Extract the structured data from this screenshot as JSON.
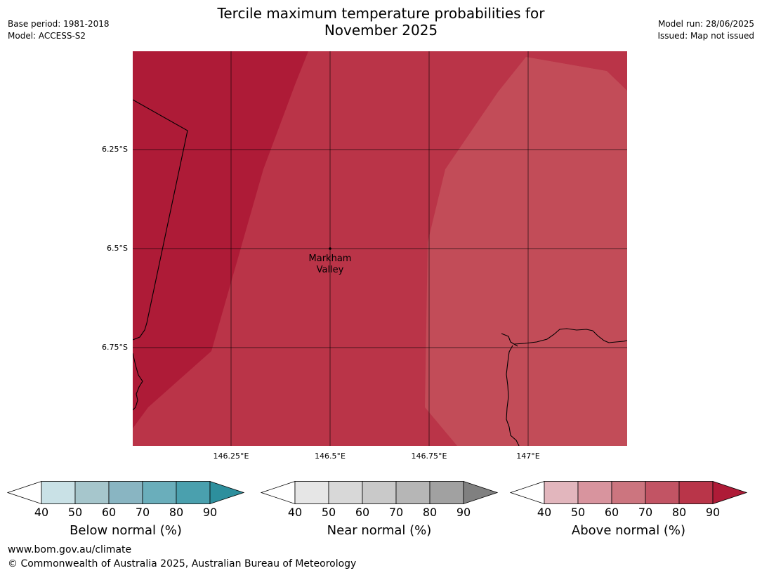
{
  "header": {
    "title_line1": "Tercile maximum temperature probabilities for",
    "title_line2": "November 2025",
    "base_period": "Base period: 1981-2018",
    "model": "Model: ACCESS-S2",
    "model_run": "Model run: 28/06/2025",
    "issued": "Issued: Map not issued"
  },
  "map": {
    "lat_ticks": [
      "6.25°S",
      "6.5°S",
      "6.75°S"
    ],
    "lon_ticks": [
      "146.25°E",
      "146.5°E",
      "146.75°E",
      "147°E"
    ],
    "place": {
      "name_line1": "Markham",
      "name_line2": "Valley",
      "lat": -6.5,
      "lon": 146.5
    },
    "colors": {
      "above_70_80": "#c24c58",
      "above_80_90": "#ba3448",
      "above_90_plus": "#ae1b37"
    }
  },
  "colorbars": [
    {
      "label": "Below normal (%)",
      "ticks": [
        "40",
        "50",
        "60",
        "70",
        "80",
        "90"
      ],
      "colors": [
        "#ffffff",
        "#c9e1e6",
        "#a6c6cc",
        "#89b5c2",
        "#6aaebb",
        "#4aa0ae",
        "#2d8f9d"
      ]
    },
    {
      "label": "Near normal (%)",
      "ticks": [
        "40",
        "50",
        "60",
        "70",
        "80",
        "90"
      ],
      "colors": [
        "#ffffff",
        "#e6e6e6",
        "#d8d8d8",
        "#c9c9c9",
        "#b6b6b6",
        "#a1a1a1",
        "#808080"
      ]
    },
    {
      "label": "Above normal (%)",
      "ticks": [
        "40",
        "50",
        "60",
        "70",
        "80",
        "90"
      ],
      "colors": [
        "#ffffff",
        "#e2b6bd",
        "#d8949e",
        "#cc757f",
        "#c25464",
        "#b93549",
        "#ae1b37"
      ]
    }
  ],
  "footer": {
    "url": "www.bom.gov.au/climate",
    "copyright": "© Commonwealth of Australia 2025, Australian Bureau of Meteorology"
  }
}
